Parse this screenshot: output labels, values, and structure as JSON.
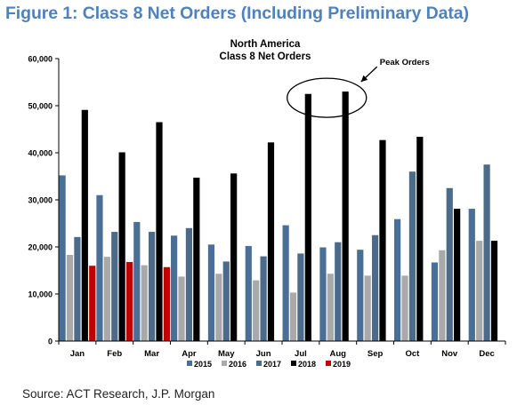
{
  "figure_title": "Figure 1: Class 8 Net Orders (Including Preliminary Data)",
  "source": "Source: ACT Research, J.P. Morgan",
  "chart_data": {
    "type": "bar",
    "title": "North America",
    "subtitle": "Class 8 Net Orders",
    "xlabel": "",
    "ylabel": "",
    "ylim": [
      0,
      60000
    ],
    "yticks": [
      0,
      10000,
      20000,
      30000,
      40000,
      50000,
      60000
    ],
    "ytick_labels": [
      "0",
      "10,000",
      "20,000",
      "30,000",
      "40,000",
      "50,000",
      "60,000"
    ],
    "grid": false,
    "legend_position": "bottom",
    "categories": [
      "Jan",
      "Feb",
      "Mar",
      "Apr",
      "May",
      "Jun",
      "Jul",
      "Aug",
      "Sep",
      "Oct",
      "Nov",
      "Dec"
    ],
    "series": [
      {
        "name": "2015",
        "color": "#4a6f96",
        "values": [
          35200,
          31000,
          25300,
          22400,
          20500,
          20200,
          24600,
          19900,
          19400,
          25900,
          16700,
          28100
        ]
      },
      {
        "name": "2016",
        "color": "#a9a9a9",
        "values": [
          18300,
          17900,
          16100,
          13700,
          14300,
          12900,
          10300,
          14300,
          13900,
          13900,
          19300,
          21300
        ]
      },
      {
        "name": "2017",
        "color": "#4c6a8a",
        "values": [
          22100,
          23200,
          23200,
          24000,
          16900,
          18000,
          18600,
          21000,
          22500,
          36000,
          32500,
          37500
        ]
      },
      {
        "name": "2018",
        "color": "#000000",
        "values": [
          49100,
          40100,
          46500,
          34700,
          35600,
          42200,
          52500,
          53000,
          42700,
          43400,
          28100,
          21300
        ]
      },
      {
        "name": "2019",
        "color": "#c00000",
        "values": [
          16000,
          16800,
          15700,
          null,
          null,
          null,
          null,
          null,
          null,
          null,
          null,
          null
        ]
      }
    ],
    "annotations": [
      {
        "text": "Peak Orders",
        "target": [
          "Jul",
          "Aug"
        ],
        "series": "2018"
      }
    ]
  }
}
